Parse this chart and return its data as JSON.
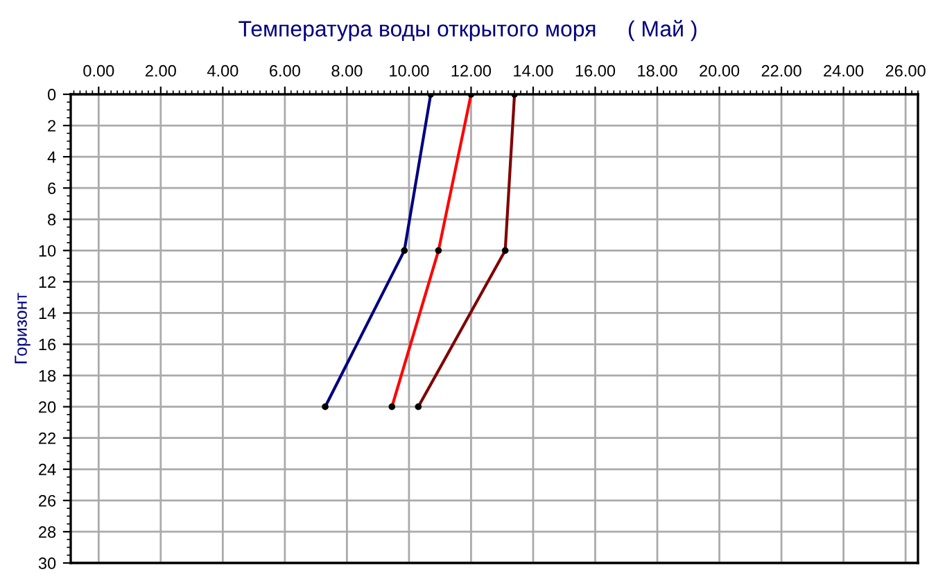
{
  "chart_data": {
    "type": "line",
    "title": "Температура воды открытого моря     ( Май )",
    "ylabel": "Горизонт",
    "series": [
      {
        "color": "#000080",
        "x": [
          10.7,
          9.85,
          7.3
        ],
        "values": [
          0,
          10,
          20
        ]
      },
      {
        "color": "#ff0000",
        "x": [
          12.0,
          10.95,
          9.45
        ],
        "values": [
          0,
          10,
          20
        ]
      },
      {
        "color": "#800000",
        "x": [
          13.4,
          13.1,
          10.3
        ],
        "values": [
          0,
          10,
          20
        ]
      }
    ],
    "xlim": [
      -0.9,
      26.4
    ],
    "xticks": [
      {
        "value": 0,
        "label": "0.00"
      },
      {
        "value": 2,
        "label": "2.00"
      },
      {
        "value": 4,
        "label": "4.00"
      },
      {
        "value": 6,
        "label": "6.00"
      },
      {
        "value": 8,
        "label": "8.00"
      },
      {
        "value": 10,
        "label": "10.00"
      },
      {
        "value": 12,
        "label": "12.00"
      },
      {
        "value": 14,
        "label": "14.00"
      },
      {
        "value": 16,
        "label": "16.00"
      },
      {
        "value": 18,
        "label": "18.00"
      },
      {
        "value": 20,
        "label": "20.00"
      },
      {
        "value": 22,
        "label": "22.00"
      },
      {
        "value": 24,
        "label": "24.00"
      },
      {
        "value": 26,
        "label": "26.00"
      }
    ],
    "ylim": [
      30,
      0
    ],
    "yticks": [
      0,
      2,
      4,
      6,
      8,
      10,
      12,
      14,
      16,
      18,
      20,
      22,
      24,
      26,
      28,
      30
    ],
    "grid": true,
    "marker": "circle",
    "line_style": "solid"
  }
}
